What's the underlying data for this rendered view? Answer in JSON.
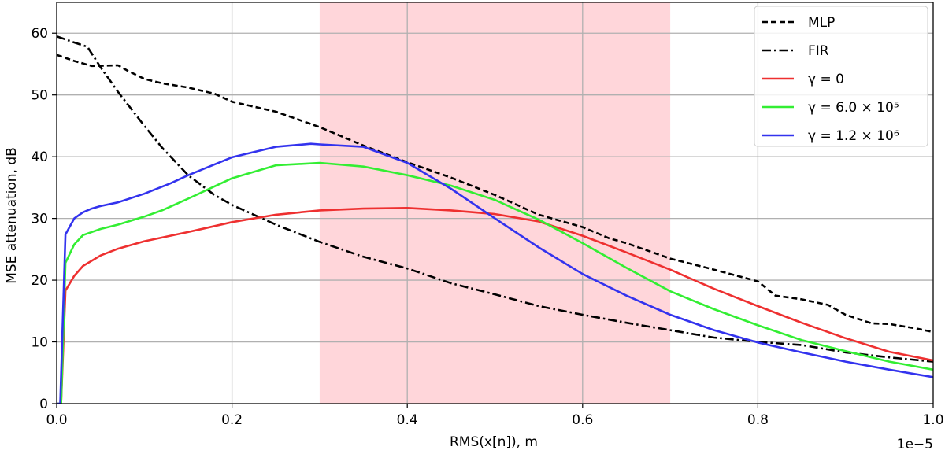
{
  "chart_data": {
    "type": "line",
    "xlabel": "RMS(x[n]), m",
    "ylabel": "MSE attenuation, dB",
    "x_multiplier_label": "1e−5",
    "xlim": [
      0.0,
      1.0
    ],
    "ylim": [
      0,
      65
    ],
    "x_ticks": [
      "0.0",
      "0.2",
      "0.4",
      "0.6",
      "0.8",
      "1.0"
    ],
    "x_tick_values": [
      0.0,
      0.2,
      0.4,
      0.6,
      0.8,
      1.0
    ],
    "y_ticks": [
      "0",
      "10",
      "20",
      "30",
      "40",
      "50",
      "60"
    ],
    "y_tick_values": [
      0,
      10,
      20,
      30,
      40,
      50,
      60
    ],
    "grid": true,
    "legend_position": "top-right",
    "shaded_region": {
      "x": [
        0.3,
        0.7
      ],
      "color": "#ffd6da"
    },
    "series": [
      {
        "name": "MLP",
        "color": "#000000",
        "dash": "dashed",
        "x": [
          0.0,
          0.01,
          0.02,
          0.04,
          0.07,
          0.08,
          0.1,
          0.12,
          0.15,
          0.18,
          0.2,
          0.25,
          0.3,
          0.35,
          0.4,
          0.45,
          0.5,
          0.55,
          0.6,
          0.63,
          0.65,
          0.7,
          0.75,
          0.8,
          0.82,
          0.85,
          0.88,
          0.9,
          0.93,
          0.95,
          0.98,
          1.0
        ],
        "y": [
          56.5,
          56.0,
          55.5,
          54.7,
          54.8,
          54.0,
          52.6,
          51.9,
          51.2,
          50.2,
          48.9,
          47.3,
          44.8,
          41.8,
          39.1,
          36.6,
          33.8,
          30.6,
          28.6,
          26.8,
          26.0,
          23.5,
          21.7,
          19.8,
          17.5,
          16.9,
          16.0,
          14.4,
          13.0,
          12.9,
          12.2,
          11.6
        ]
      },
      {
        "name": "FIR",
        "color": "#000000",
        "dash": "dashdot",
        "x": [
          0.0,
          0.02,
          0.035,
          0.05,
          0.07,
          0.1,
          0.12,
          0.15,
          0.18,
          0.2,
          0.25,
          0.3,
          0.35,
          0.4,
          0.45,
          0.5,
          0.55,
          0.6,
          0.65,
          0.7,
          0.75,
          0.8,
          0.85,
          0.9,
          0.95,
          1.0
        ],
        "y": [
          59.5,
          58.5,
          57.8,
          54.5,
          50.5,
          45.0,
          41.5,
          37.0,
          33.8,
          32.2,
          29.0,
          26.2,
          23.8,
          21.9,
          19.5,
          17.7,
          15.8,
          14.4,
          13.1,
          11.9,
          10.7,
          10.0,
          9.5,
          8.3,
          7.5,
          6.8
        ]
      },
      {
        "name": "γ = 0",
        "color": "#ee3030",
        "dash": "solid",
        "x": [
          0.0,
          0.005,
          0.01,
          0.02,
          0.03,
          0.05,
          0.07,
          0.1,
          0.15,
          0.2,
          0.25,
          0.3,
          0.35,
          0.4,
          0.45,
          0.5,
          0.55,
          0.6,
          0.65,
          0.7,
          0.75,
          0.8,
          0.85,
          0.9,
          0.95,
          1.0
        ],
        "y": [
          0,
          0,
          18.3,
          20.7,
          22.3,
          24.0,
          25.1,
          26.3,
          27.8,
          29.4,
          30.6,
          31.3,
          31.6,
          31.7,
          31.3,
          30.7,
          29.5,
          27.2,
          24.5,
          21.7,
          18.6,
          15.8,
          13.1,
          10.6,
          8.4,
          7.0
        ]
      },
      {
        "name": "γ = 6.0 × 10⁵",
        "color": "#33ee33",
        "dash": "solid",
        "x": [
          0.0,
          0.005,
          0.01,
          0.02,
          0.03,
          0.05,
          0.07,
          0.1,
          0.12,
          0.15,
          0.2,
          0.25,
          0.3,
          0.35,
          0.4,
          0.45,
          0.5,
          0.55,
          0.6,
          0.65,
          0.7,
          0.75,
          0.8,
          0.85,
          0.9,
          0.95,
          1.0
        ],
        "y": [
          0,
          0,
          22.8,
          25.8,
          27.3,
          28.3,
          29.0,
          30.3,
          31.3,
          33.2,
          36.5,
          38.6,
          39.0,
          38.4,
          37.0,
          35.3,
          33.0,
          29.8,
          26.0,
          22.0,
          18.2,
          15.3,
          12.7,
          10.3,
          8.5,
          6.8,
          5.5
        ]
      },
      {
        "name": "γ = 1.2 × 10⁶",
        "color": "#3333ee",
        "dash": "solid",
        "x": [
          0.0,
          0.004,
          0.01,
          0.02,
          0.03,
          0.04,
          0.05,
          0.07,
          0.1,
          0.13,
          0.15,
          0.2,
          0.25,
          0.29,
          0.3,
          0.35,
          0.4,
          0.45,
          0.5,
          0.55,
          0.6,
          0.65,
          0.7,
          0.75,
          0.8,
          0.85,
          0.9,
          0.95,
          1.0
        ],
        "y": [
          0,
          0,
          27.4,
          30.0,
          31.0,
          31.6,
          32.0,
          32.6,
          34.0,
          35.7,
          37.0,
          39.9,
          41.6,
          42.1,
          42.0,
          41.6,
          39.0,
          34.8,
          30.0,
          25.3,
          21.0,
          17.5,
          14.4,
          11.9,
          9.9,
          8.3,
          6.8,
          5.5,
          4.3
        ]
      }
    ]
  }
}
